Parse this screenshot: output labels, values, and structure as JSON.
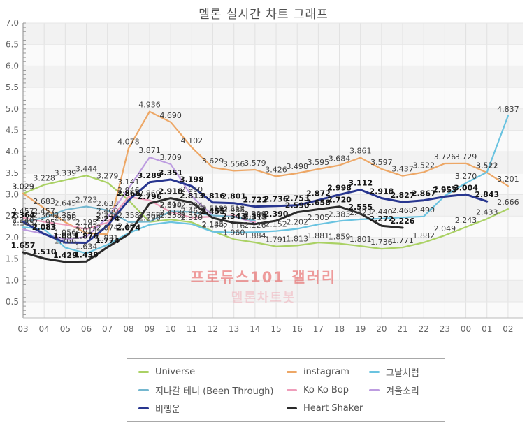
{
  "title": "멜론 실시간 차트 그래프",
  "watermark": {
    "line1": "프로듀스101 갤러리",
    "line2": "멜론차트봇"
  },
  "axes": {
    "y_ticks": [
      "7.0",
      "6.5",
      "6.0",
      "5.5",
      "5.0",
      "4.5",
      "4.0",
      "3.5",
      "3.0",
      "2.5",
      "2.0",
      "1.5",
      "1.0",
      "0.5"
    ],
    "y_max": 7.0,
    "y_label_step": 0.5
  },
  "chart_data": {
    "type": "line",
    "title": "멜론 실시간 차트 그래프",
    "xlabel": "",
    "ylabel": "",
    "ylim": [
      0,
      7
    ],
    "grid": true,
    "legend_position": "bottom",
    "x": [
      "03",
      "04",
      "05",
      "06",
      "07",
      "08",
      "09",
      "10",
      "11",
      "12",
      "13",
      "14",
      "15",
      "16",
      "17",
      "18",
      "19",
      "20",
      "21",
      "22",
      "23",
      "00",
      "01",
      "02"
    ],
    "series": [
      {
        "name": "Universe",
        "color": "#aad164",
        "dark": false,
        "values": [
          3.023,
          3.228,
          3.339,
          3.444,
          3.279,
          2.868,
          2.362,
          2.418,
          2.353,
          2.145,
          1.96,
          1.884,
          1.791,
          1.813,
          1.881,
          1.859,
          1.801,
          1.736,
          1.771,
          1.882,
          2.049,
          2.243,
          2.433,
          2.666
        ]
      },
      {
        "name": "instagram",
        "color": "#eda766",
        "dark": false,
        "values": [
          3.029,
          2.683,
          2.356,
          2.102,
          2.074,
          4.078,
          4.936,
          4.69,
          4.102,
          3.629,
          3.556,
          3.579,
          3.426,
          3.498,
          3.595,
          3.684,
          3.861,
          3.597,
          3.437,
          3.522,
          3.726,
          3.729,
          3.512,
          3.201
        ]
      },
      {
        "name": "겨울소리",
        "color": "#bd9ce0",
        "dark": false,
        "values": [
          2.185,
          2.083,
          1.956,
          2.014,
          2.46,
          3.141,
          3.871,
          3.709,
          2.96,
          2.512,
          2.485,
          2.343,
          null,
          null,
          null,
          null,
          null,
          null,
          null,
          null,
          null,
          null,
          null,
          null
        ]
      },
      {
        "name": "Ko Ko Bop",
        "color": "#ef9ebb",
        "dark": false,
        "values": [
          2.457,
          2.364,
          2.296,
          2.195,
          2.346,
          2.946,
          2.869,
          2.594,
          2.462,
          2.485,
          2.512,
          2.362,
          null,
          null,
          null,
          null,
          null,
          null,
          null,
          null,
          null,
          null,
          null,
          null
        ]
      },
      {
        "name": "지나갈 테니 (Been Through)",
        "color": "#74b7cf",
        "dark": false,
        "values": [
          2.364,
          2.457,
          2.645,
          2.723,
          2.633,
          2.358,
          2.366,
          2.61,
          2.594,
          2.512,
          2.485,
          2.39,
          null,
          null,
          null,
          null,
          null,
          null,
          null,
          null,
          null,
          null,
          null,
          null
        ]
      },
      {
        "name": "그날처럼",
        "color": "#6ac3e0",
        "dark": false,
        "values": [
          2.24,
          2.195,
          1.766,
          1.634,
          1.831,
          2.102,
          2.296,
          2.358,
          2.31,
          2.134,
          2.116,
          2.126,
          2.152,
          2.202,
          2.305,
          2.383,
          2.423,
          2.44,
          2.468,
          2.49,
          2.973,
          3.27,
          3.521,
          4.837
        ]
      },
      {
        "name": "비행운",
        "color": "#28368f",
        "dark": true,
        "values": [
          2.364,
          2.083,
          1.883,
          1.876,
          2.274,
          2.866,
          3.289,
          3.351,
          3.198,
          2.816,
          2.801,
          2.722,
          2.736,
          2.753,
          2.872,
          2.998,
          3.112,
          2.918,
          2.827,
          2.867,
          2.953,
          3.004,
          2.843,
          null
        ]
      },
      {
        "name": "Heart Shaker",
        "color": "#2a2a2a",
        "dark": true,
        "values": [
          1.657,
          1.51,
          1.429,
          1.439,
          1.774,
          2.074,
          2.796,
          2.918,
          2.813,
          2.455,
          2.343,
          2.313,
          2.39,
          2.59,
          2.658,
          2.72,
          2.555,
          2.272,
          2.226,
          null,
          null,
          null,
          null,
          null
        ]
      }
    ],
    "legend_order": [
      "Universe",
      "instagram",
      "그날처럼",
      "지나갈 테니 (Been Through)",
      "Ko Ko Bop",
      "겨울소리",
      "비행운",
      "Heart Shaker"
    ]
  }
}
